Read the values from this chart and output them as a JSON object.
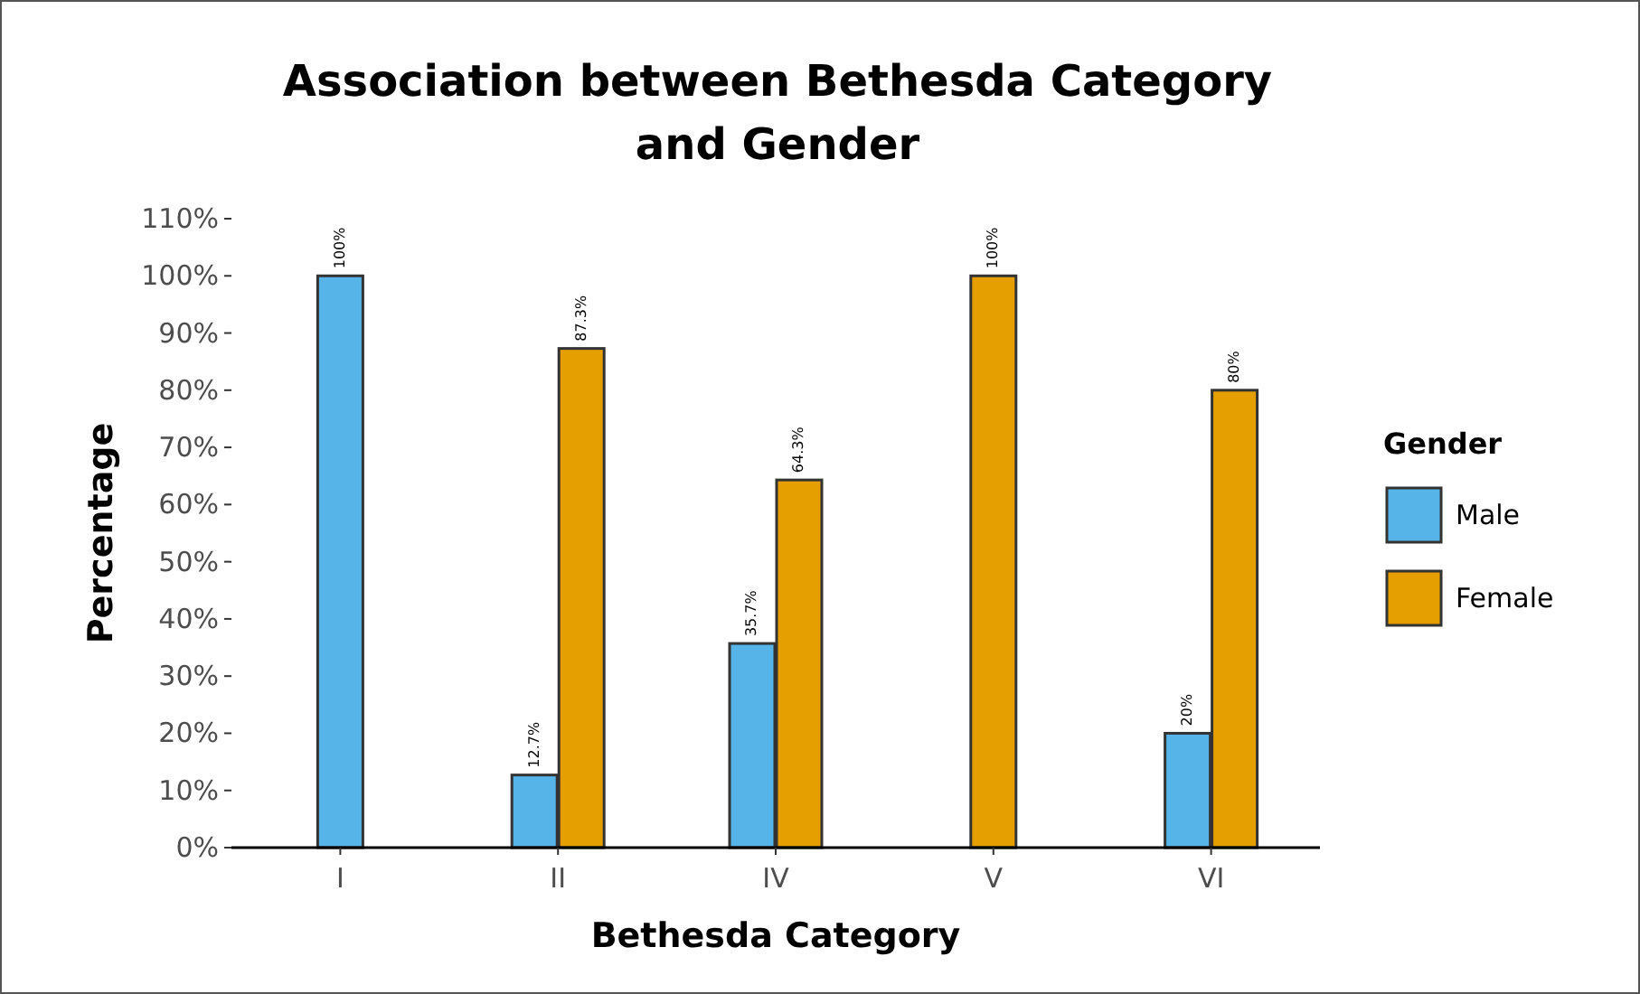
{
  "chart_data": {
    "type": "bar",
    "title": "Association between Bethesda Category\nand Gender",
    "xlabel": "Bethesda Category",
    "ylabel": "Percentage",
    "legend_title": "Gender",
    "legend": "right",
    "grid": false,
    "categories": [
      "I",
      "II",
      "IV",
      "V",
      "VI"
    ],
    "series": [
      {
        "name": "Male",
        "color": "#56b4e9",
        "values": [
          100,
          12.7,
          35.7,
          null,
          20
        ],
        "value_labels": [
          "100%",
          "12.7%",
          "35.7%",
          null,
          "20%"
        ]
      },
      {
        "name": "Female",
        "color": "#e69f00",
        "values": [
          null,
          87.3,
          64.3,
          100,
          80
        ],
        "value_labels": [
          null,
          "87.3%",
          "64.3%",
          "100%",
          "80%"
        ]
      }
    ],
    "ylim": [
      0,
      110
    ],
    "yticks": [
      {
        "value": 0,
        "label": "0%"
      },
      {
        "value": 10,
        "label": "10%"
      },
      {
        "value": 20,
        "label": "20%"
      },
      {
        "value": 30,
        "label": "30%"
      },
      {
        "value": 40,
        "label": "40%"
      },
      {
        "value": 50,
        "label": "50%"
      },
      {
        "value": 60,
        "label": "60%"
      },
      {
        "value": 70,
        "label": "70%"
      },
      {
        "value": 80,
        "label": "80%"
      },
      {
        "value": 90,
        "label": "90%"
      },
      {
        "value": 100,
        "label": "100%"
      },
      {
        "value": 110,
        "label": "110%"
      }
    ]
  }
}
